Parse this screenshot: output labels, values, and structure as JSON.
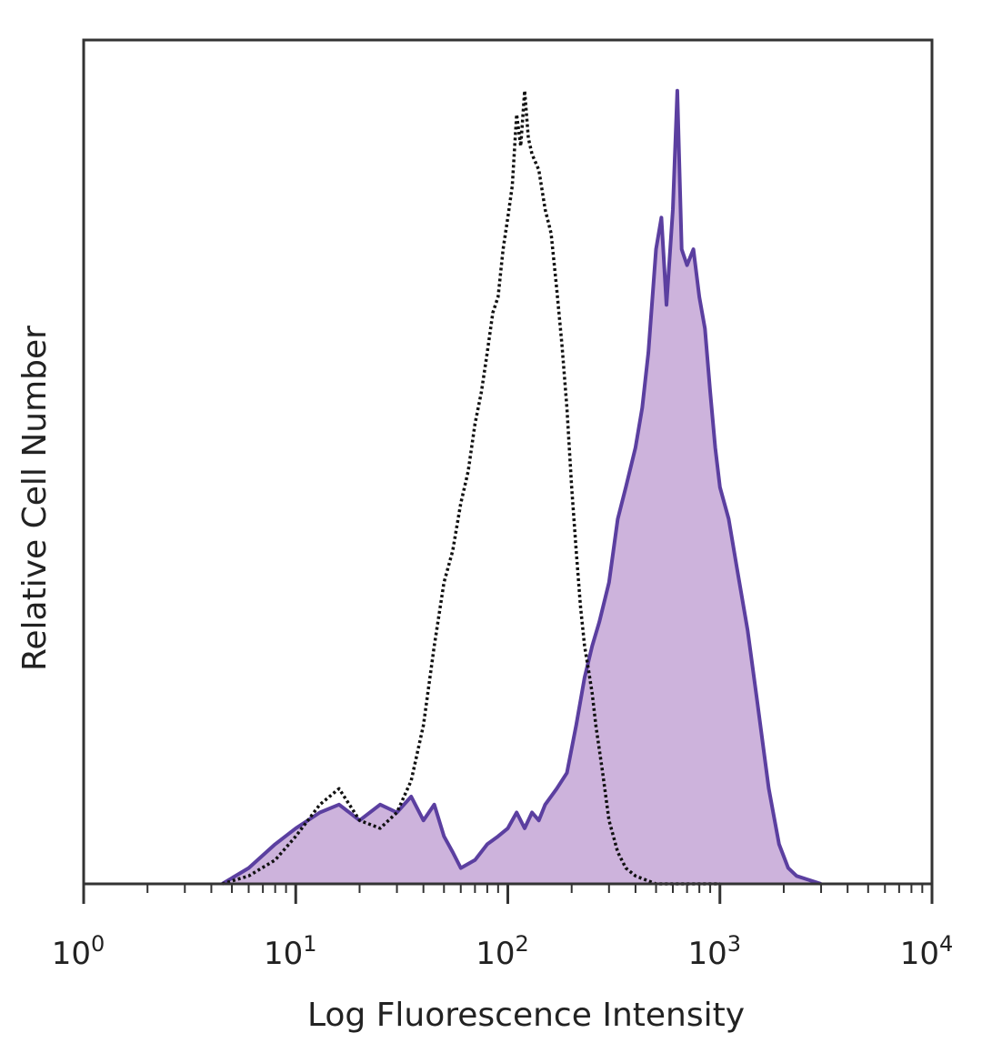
{
  "chart_data": {
    "type": "area",
    "xlabel": "Log Fluorescence Intensity",
    "ylabel": "Relative Cell Number",
    "xscale": "log",
    "xlim": [
      1,
      10000
    ],
    "ylim": [
      0,
      1
    ],
    "xticks": [
      {
        "base": "10",
        "exp": "0",
        "value": 1
      },
      {
        "base": "10",
        "exp": "1",
        "value": 10
      },
      {
        "base": "10",
        "exp": "2",
        "value": 100
      },
      {
        "base": "10",
        "exp": "3",
        "value": 1000
      },
      {
        "base": "10",
        "exp": "4",
        "value": 10000
      }
    ],
    "grid": false,
    "legend": "none",
    "series": [
      {
        "style": "dotted black outline",
        "color": "#111111",
        "x": [
          4.5,
          6,
          8,
          10,
          13,
          16,
          20,
          25,
          30,
          35,
          40,
          45,
          50,
          55,
          60,
          65,
          70,
          75,
          80,
          85,
          90,
          95,
          100,
          105,
          110,
          115,
          120,
          125,
          130,
          140,
          150,
          160,
          170,
          180,
          190,
          200,
          210,
          220,
          230,
          240,
          250,
          260,
          280,
          300,
          330,
          360,
          400,
          500,
          700,
          1000
        ],
        "y": [
          0.0,
          0.01,
          0.03,
          0.06,
          0.1,
          0.12,
          0.08,
          0.07,
          0.09,
          0.13,
          0.2,
          0.3,
          0.38,
          0.42,
          0.48,
          0.52,
          0.58,
          0.62,
          0.67,
          0.72,
          0.74,
          0.8,
          0.84,
          0.88,
          0.97,
          0.93,
          1.0,
          0.94,
          0.92,
          0.9,
          0.85,
          0.82,
          0.75,
          0.68,
          0.6,
          0.5,
          0.42,
          0.35,
          0.3,
          0.27,
          0.24,
          0.2,
          0.14,
          0.08,
          0.04,
          0.02,
          0.01,
          0.0,
          0.0,
          0.0
        ]
      },
      {
        "style": "filled purple",
        "color": "#5b3fa0",
        "fill": "#cdb3dc",
        "x": [
          4.5,
          6,
          8,
          10,
          13,
          16,
          20,
          25,
          30,
          35,
          40,
          45,
          50,
          55,
          60,
          70,
          80,
          90,
          100,
          110,
          120,
          130,
          140,
          150,
          170,
          190,
          210,
          230,
          250,
          270,
          300,
          330,
          360,
          400,
          430,
          460,
          500,
          530,
          560,
          600,
          630,
          660,
          700,
          750,
          800,
          850,
          900,
          950,
          1000,
          1100,
          1200,
          1350,
          1500,
          1700,
          1900,
          2100,
          2300,
          3000
        ],
        "y": [
          0.0,
          0.02,
          0.05,
          0.07,
          0.09,
          0.1,
          0.08,
          0.1,
          0.09,
          0.11,
          0.08,
          0.1,
          0.06,
          0.04,
          0.02,
          0.03,
          0.05,
          0.06,
          0.07,
          0.09,
          0.07,
          0.09,
          0.08,
          0.1,
          0.12,
          0.14,
          0.2,
          0.26,
          0.3,
          0.33,
          0.38,
          0.46,
          0.5,
          0.55,
          0.6,
          0.67,
          0.8,
          0.84,
          0.73,
          0.85,
          1.0,
          0.8,
          0.78,
          0.8,
          0.74,
          0.7,
          0.62,
          0.55,
          0.5,
          0.46,
          0.4,
          0.32,
          0.23,
          0.12,
          0.05,
          0.02,
          0.01,
          0.0
        ]
      }
    ]
  }
}
